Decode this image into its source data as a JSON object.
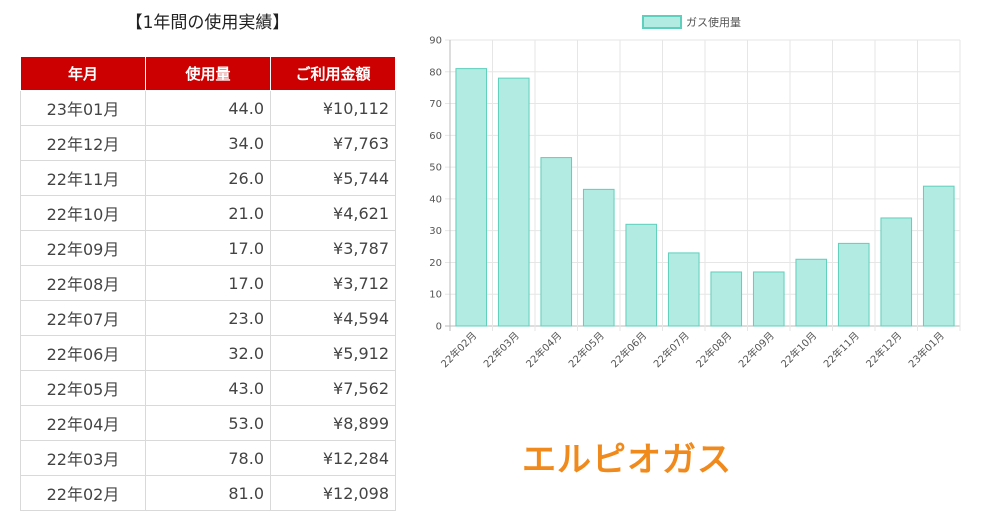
{
  "table": {
    "title": "【1年間の使用実績】",
    "headers": [
      "年月",
      "使用量",
      "ご利用金額"
    ],
    "rows": [
      [
        "23年01月",
        "44.0",
        "¥10,112"
      ],
      [
        "22年12月",
        "34.0",
        "¥7,763"
      ],
      [
        "22年11月",
        "26.0",
        "¥5,744"
      ],
      [
        "22年10月",
        "21.0",
        "¥4,621"
      ],
      [
        "22年09月",
        "17.0",
        "¥3,787"
      ],
      [
        "22年08月",
        "17.0",
        "¥3,712"
      ],
      [
        "22年07月",
        "23.0",
        "¥4,594"
      ],
      [
        "22年06月",
        "32.0",
        "¥5,912"
      ],
      [
        "22年05月",
        "43.0",
        "¥7,562"
      ],
      [
        "22年04月",
        "53.0",
        "¥8,899"
      ],
      [
        "22年03月",
        "78.0",
        "¥12,284"
      ],
      [
        "22年02月",
        "81.0",
        "¥12,098"
      ]
    ]
  },
  "brand": "エルピオガス",
  "chart_data": {
    "type": "bar",
    "categories": [
      "22年02月",
      "22年03月",
      "22年04月",
      "22年05月",
      "22年06月",
      "22年07月",
      "22年08月",
      "22年09月",
      "22年10月",
      "22年11月",
      "22年12月",
      "23年01月"
    ],
    "series": [
      {
        "name": "ガス使用量",
        "values": [
          81,
          78,
          53,
          43,
          32,
          23,
          17,
          17,
          21,
          26,
          34,
          44
        ]
      }
    ],
    "yticks": [
      0,
      10,
      20,
      30,
      40,
      50,
      60,
      70,
      80,
      90
    ],
    "ylim": [
      0,
      90
    ],
    "grid": true,
    "legend": "top-center",
    "colors": {
      "fill": "#b2ebe1",
      "stroke": "#5fcfbd"
    }
  }
}
